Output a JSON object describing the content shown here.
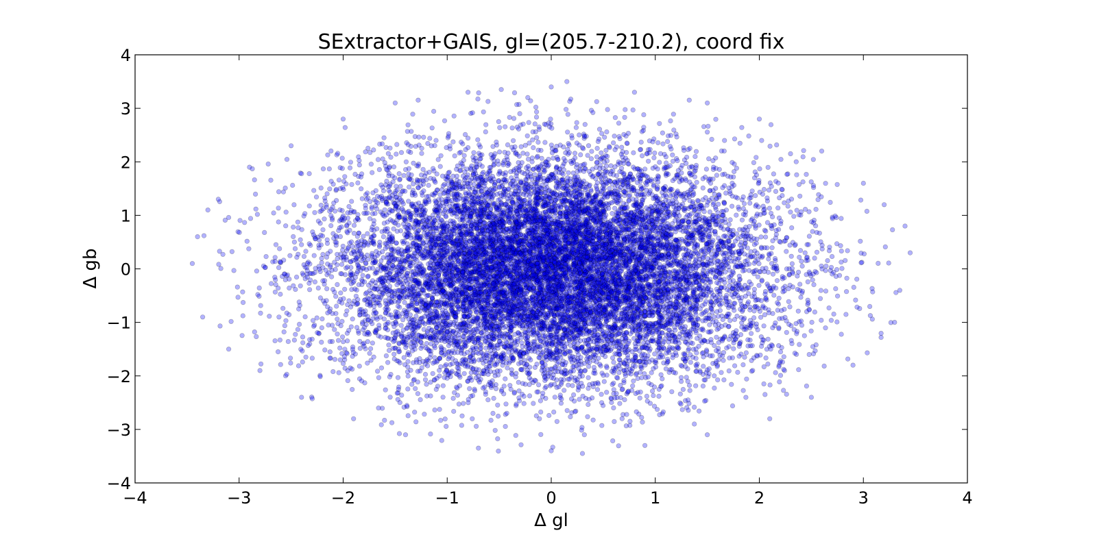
{
  "chart_data": {
    "type": "scatter",
    "title": "SExtractor+GAIS, gl=(205.7-210.2), coord fix",
    "xlabel": "Δ gl",
    "ylabel": "Δ gb",
    "xlim": [
      -4,
      4
    ],
    "ylim": [
      -4,
      4
    ],
    "x_ticks": [
      "−4",
      "−3",
      "−2",
      "−1",
      "0",
      "1",
      "2",
      "3",
      "4"
    ],
    "y_ticks": [
      "−4",
      "−3",
      "−2",
      "−1",
      "0",
      "1",
      "2",
      "3",
      "4"
    ],
    "grid": false,
    "legend": "none",
    "marker_fill": "#0000ff",
    "marker_edge": "#000000",
    "marker_alpha": 0.3,
    "point_distribution": {
      "shape": "elliptical cloud centered at (0, 0)",
      "x_extent": [
        -3.45,
        3.45
      ],
      "y_extent": [
        -3.45,
        3.5
      ],
      "approx_points": 20000
    },
    "sample_points": [
      [
        -3.4,
        0.6
      ],
      [
        -3.45,
        0.1
      ],
      [
        -3.35,
        -0.9
      ],
      [
        -3.2,
        1.3
      ],
      [
        -3.1,
        -1.5
      ],
      [
        -2.9,
        1.9
      ],
      [
        -2.8,
        -1.9
      ],
      [
        -2.5,
        2.3
      ],
      [
        -2.4,
        -2.4
      ],
      [
        -2.0,
        2.8
      ],
      [
        -1.9,
        -2.8
      ],
      [
        -1.5,
        3.1
      ],
      [
        -1.4,
        -3.1
      ],
      [
        -0.8,
        3.3
      ],
      [
        -0.7,
        -3.35
      ],
      [
        0.0,
        3.4
      ],
      [
        0.15,
        3.5
      ],
      [
        0.0,
        -3.4
      ],
      [
        0.3,
        -3.45
      ],
      [
        0.8,
        3.3
      ],
      [
        0.9,
        -3.3
      ],
      [
        1.5,
        3.1
      ],
      [
        1.5,
        -3.1
      ],
      [
        2.0,
        2.8
      ],
      [
        2.1,
        -2.8
      ],
      [
        2.6,
        2.2
      ],
      [
        2.5,
        -2.4
      ],
      [
        3.0,
        1.6
      ],
      [
        2.9,
        -1.8
      ],
      [
        3.2,
        1.2
      ],
      [
        3.3,
        -1.0
      ],
      [
        3.45,
        0.3
      ],
      [
        3.4,
        0.8
      ],
      [
        3.35,
        -0.4
      ],
      [
        -3.3,
        1.1
      ]
    ]
  }
}
